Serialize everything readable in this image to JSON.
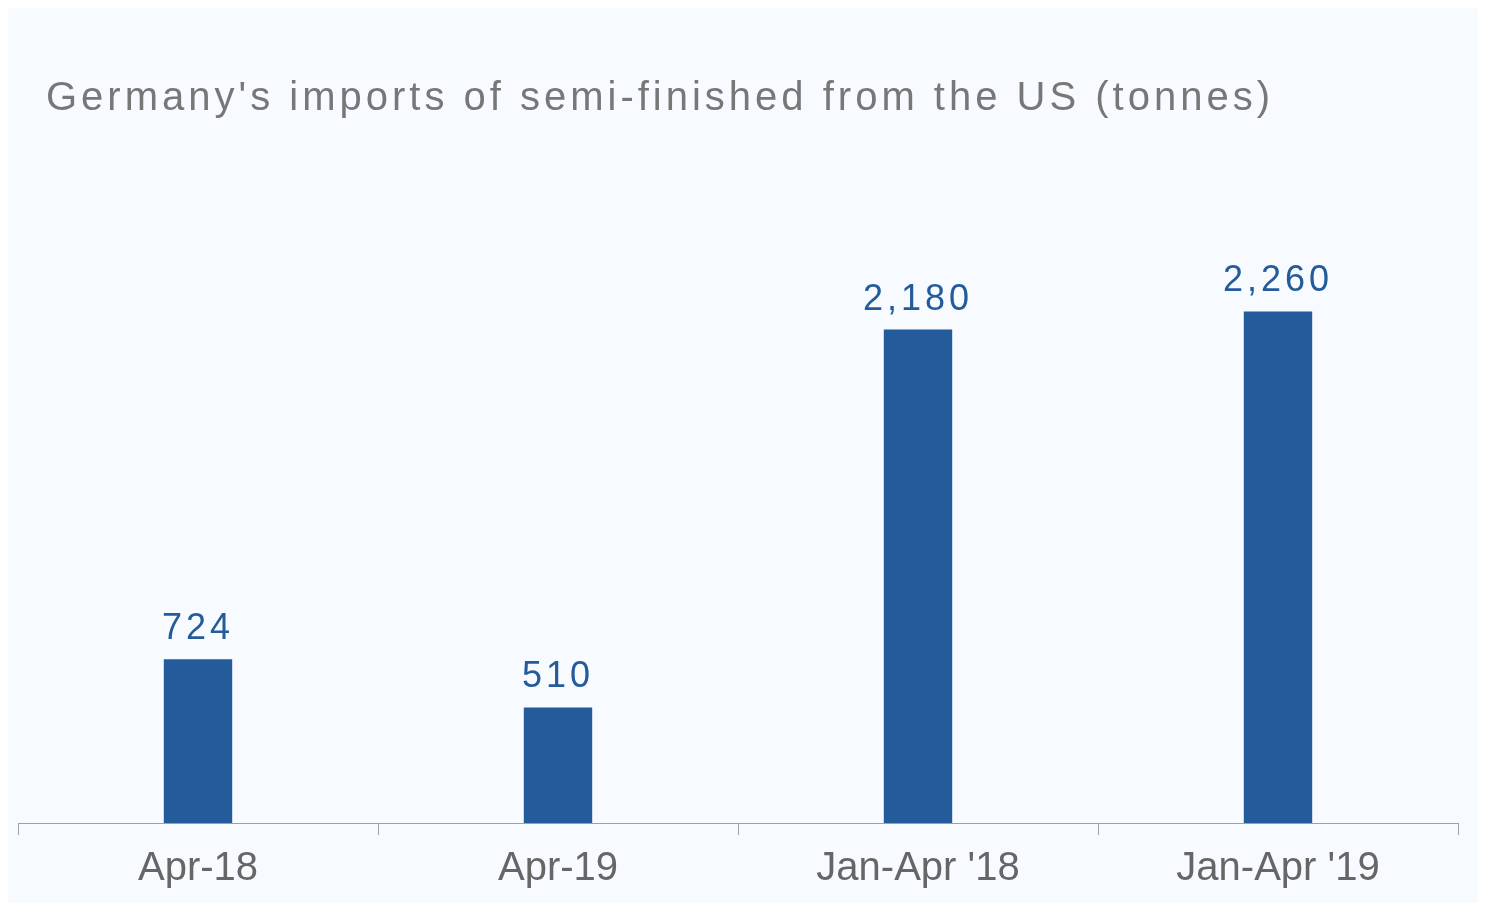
{
  "chart_data": {
    "type": "bar",
    "title": "Germany's imports of semi-finished from the US (tonnes)",
    "categories": [
      "Apr-18",
      "Apr-19",
      "Jan-Apr '18",
      "Jan-Apr '19"
    ],
    "values": [
      724,
      510,
      2180,
      2260
    ],
    "value_labels": [
      "724",
      "510",
      "2,180",
      "2,260"
    ],
    "color": "#245b9b",
    "grid": false,
    "legend": false
  }
}
